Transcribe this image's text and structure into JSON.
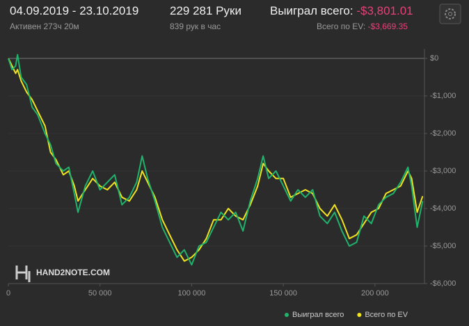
{
  "header": {
    "date_range": "04.09.2019 - 23.10.2019",
    "active": "Активен 273ч 20м",
    "hands": "229 281 Руки",
    "hands_per_hour": "839 рук в час",
    "won_label": "Выиграл всего:",
    "won_value": "-$3,801.01",
    "ev_label": "Всего по EV:",
    "ev_value": "-$3,669.35"
  },
  "chart_data": {
    "type": "line",
    "watermark": "HAND2NOTE.COM",
    "x": [
      0,
      2000,
      4000,
      5000,
      7000,
      10000,
      13000,
      16000,
      20000,
      23000,
      26000,
      30000,
      33000,
      36000,
      38000,
      42000,
      46000,
      50000,
      54000,
      58000,
      62000,
      66000,
      70000,
      73000,
      76000,
      80000,
      84000,
      88000,
      92000,
      96000,
      100000,
      104000,
      108000,
      112000,
      116000,
      120000,
      124000,
      128000,
      132000,
      136000,
      139000,
      142000,
      146000,
      150000,
      154000,
      158000,
      162000,
      166000,
      170000,
      174000,
      178000,
      182000,
      186000,
      190000,
      194000,
      198000,
      202000,
      206000,
      210000,
      214000,
      218000,
      220000,
      223000,
      226000
    ],
    "series": [
      {
        "name": "Выиграл всего",
        "color": "#1fb36c",
        "values": [
          0,
          -300,
          -200,
          100,
          -500,
          -700,
          -1300,
          -1500,
          -2000,
          -2300,
          -2800,
          -3000,
          -2900,
          -3600,
          -4100,
          -3400,
          -3000,
          -3500,
          -3300,
          -3100,
          -3900,
          -3700,
          -3300,
          -2600,
          -3200,
          -3800,
          -4500,
          -4900,
          -5300,
          -5100,
          -5500,
          -5000,
          -4900,
          -4500,
          -4100,
          -4300,
          -4100,
          -4600,
          -3800,
          -3200,
          -2600,
          -3200,
          -3000,
          -3400,
          -3800,
          -3500,
          -3700,
          -3500,
          -4200,
          -4400,
          -4100,
          -4600,
          -5000,
          -4900,
          -4200,
          -4400,
          -3900,
          -3700,
          -3600,
          -3300,
          -2900,
          -3400,
          -4500,
          -3800
        ]
      },
      {
        "name": "Всего по EV",
        "color": "#f2e41e",
        "values": [
          0,
          -200,
          -400,
          -300,
          -600,
          -900,
          -1100,
          -1400,
          -1800,
          -2500,
          -2700,
          -3100,
          -3000,
          -3400,
          -3800,
          -3500,
          -3200,
          -3400,
          -3500,
          -3300,
          -3700,
          -3800,
          -3500,
          -3000,
          -3300,
          -3700,
          -4300,
          -4700,
          -5100,
          -5400,
          -5300,
          -5100,
          -4800,
          -4300,
          -4300,
          -4000,
          -4200,
          -4300,
          -3900,
          -3400,
          -2800,
          -3000,
          -3200,
          -3200,
          -3700,
          -3600,
          -3500,
          -3600,
          -4000,
          -4200,
          -3900,
          -4300,
          -4800,
          -4700,
          -4400,
          -4100,
          -4000,
          -3600,
          -3500,
          -3400,
          -3000,
          -3200,
          -4100,
          -3670
        ]
      }
    ],
    "xlim": [
      0,
      227000
    ],
    "xticks": [
      0,
      {
        "value": 50000,
        "label": "50 000"
      },
      {
        "value": 100000,
        "label": "100 000"
      },
      {
        "value": 150000,
        "label": "150 000"
      },
      {
        "value": 200000,
        "label": "200 000"
      }
    ],
    "ylim": [
      -6000,
      250
    ],
    "yticks": [
      {
        "value": 0,
        "label": "$0"
      },
      {
        "value": -1000,
        "label": "-$1,000"
      },
      {
        "value": -2000,
        "label": "-$2,000"
      },
      {
        "value": -3000,
        "label": "-$3,000"
      },
      {
        "value": -4000,
        "label": "-$4,000"
      },
      {
        "value": -5000,
        "label": "-$5,000"
      },
      {
        "value": -6000,
        "label": "-$6,000"
      }
    ],
    "grid": true,
    "legend": "bottom-right"
  }
}
